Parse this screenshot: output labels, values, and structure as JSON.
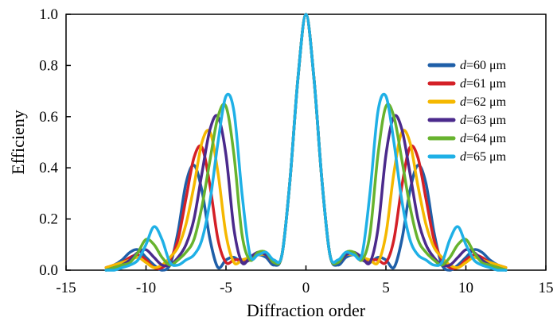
{
  "chart_data": {
    "type": "line",
    "title": "",
    "xlabel": "Diffraction order",
    "ylabel": "Efficieny",
    "xlim": [
      -15,
      15
    ],
    "ylim": [
      0,
      1.0
    ],
    "xticks": [
      -15,
      -10,
      -5,
      0,
      5,
      10,
      15
    ],
    "xtick_labels": [
      "-15",
      "-10",
      "-5",
      "0",
      "5",
      "10",
      "15"
    ],
    "yticks": [
      0,
      0.2,
      0.4,
      0.6,
      0.8,
      1.0
    ],
    "ytick_labels": [
      "0.0",
      "0.2",
      "0.4",
      "0.6",
      "0.8",
      "1.0"
    ],
    "grid": false,
    "legend_position": "top-right",
    "legend_var": "d",
    "x": [
      -12.5,
      -12.0,
      -11.5,
      -11.0,
      -10.5,
      -10.0,
      -9.5,
      -9.0,
      -8.5,
      -8.0,
      -7.5,
      -7.0,
      -6.5,
      -6.0,
      -5.5,
      -5.0,
      -4.5,
      -4.0,
      -3.5,
      -3.0,
      -2.5,
      -2.0,
      -1.5,
      -1.0,
      -0.5,
      0.0,
      0.5,
      1.0,
      1.5,
      2.0,
      2.5,
      3.0,
      3.5,
      4.0,
      4.5,
      5.0,
      5.5,
      6.0,
      6.5,
      7.0,
      7.5,
      8.0,
      8.5,
      9.0,
      9.5,
      10.0,
      10.5,
      11.0,
      11.5,
      12.0,
      12.5
    ],
    "series": [
      {
        "name": "=60 μm",
        "color": "#1f5fa8",
        "values": [
          0.01,
          0.02,
          0.04,
          0.07,
          0.08,
          0.05,
          0.02,
          0.0,
          0.02,
          0.15,
          0.34,
          0.41,
          0.31,
          0.12,
          0.01,
          0.04,
          0.05,
          0.03,
          0.04,
          0.06,
          0.05,
          0.02,
          0.06,
          0.35,
          0.75,
          1.0,
          0.75,
          0.35,
          0.06,
          0.02,
          0.05,
          0.06,
          0.04,
          0.03,
          0.05,
          0.04,
          0.01,
          0.12,
          0.31,
          0.41,
          0.34,
          0.15,
          0.02,
          0.0,
          0.02,
          0.05,
          0.08,
          0.07,
          0.04,
          0.02,
          0.01
        ]
      },
      {
        "name": "=61 μm",
        "color": "#d42027",
        "values": [
          0.01,
          0.02,
          0.03,
          0.05,
          0.06,
          0.04,
          0.01,
          0.01,
          0.04,
          0.12,
          0.28,
          0.44,
          0.48,
          0.33,
          0.12,
          0.03,
          0.04,
          0.04,
          0.04,
          0.06,
          0.06,
          0.03,
          0.06,
          0.35,
          0.75,
          1.0,
          0.75,
          0.35,
          0.06,
          0.03,
          0.06,
          0.06,
          0.04,
          0.04,
          0.04,
          0.03,
          0.12,
          0.33,
          0.48,
          0.44,
          0.28,
          0.12,
          0.04,
          0.01,
          0.01,
          0.04,
          0.06,
          0.05,
          0.03,
          0.02,
          0.01
        ]
      },
      {
        "name": "=62 μm",
        "color": "#f5b800",
        "values": [
          0.01,
          0.02,
          0.03,
          0.04,
          0.05,
          0.03,
          0.01,
          0.02,
          0.05,
          0.09,
          0.18,
          0.33,
          0.5,
          0.54,
          0.38,
          0.14,
          0.03,
          0.04,
          0.05,
          0.06,
          0.06,
          0.03,
          0.06,
          0.35,
          0.75,
          1.0,
          0.75,
          0.35,
          0.06,
          0.03,
          0.06,
          0.06,
          0.05,
          0.04,
          0.03,
          0.14,
          0.38,
          0.54,
          0.5,
          0.33,
          0.18,
          0.09,
          0.05,
          0.02,
          0.01,
          0.03,
          0.05,
          0.04,
          0.03,
          0.02,
          0.01
        ]
      },
      {
        "name": "=63 μm",
        "color": "#4b2a8c",
        "values": [
          0.0,
          0.01,
          0.02,
          0.04,
          0.07,
          0.08,
          0.05,
          0.02,
          0.02,
          0.05,
          0.1,
          0.2,
          0.38,
          0.55,
          0.6,
          0.45,
          0.16,
          0.03,
          0.05,
          0.07,
          0.06,
          0.03,
          0.06,
          0.35,
          0.75,
          1.0,
          0.75,
          0.35,
          0.06,
          0.03,
          0.06,
          0.07,
          0.05,
          0.03,
          0.16,
          0.45,
          0.6,
          0.55,
          0.38,
          0.2,
          0.1,
          0.05,
          0.02,
          0.02,
          0.05,
          0.08,
          0.07,
          0.04,
          0.02,
          0.01,
          0.0
        ]
      },
      {
        "name": "=64 μm",
        "color": "#67b32e",
        "values": [
          0.0,
          0.01,
          0.02,
          0.03,
          0.07,
          0.12,
          0.1,
          0.05,
          0.02,
          0.04,
          0.07,
          0.12,
          0.25,
          0.43,
          0.6,
          0.64,
          0.45,
          0.14,
          0.04,
          0.07,
          0.07,
          0.03,
          0.06,
          0.35,
          0.75,
          1.0,
          0.75,
          0.35,
          0.06,
          0.03,
          0.07,
          0.07,
          0.04,
          0.14,
          0.45,
          0.64,
          0.6,
          0.43,
          0.25,
          0.12,
          0.07,
          0.04,
          0.02,
          0.05,
          0.1,
          0.12,
          0.07,
          0.03,
          0.02,
          0.01,
          0.0
        ]
      },
      {
        "name": "=65 μm",
        "color": "#1fb0e6",
        "values": [
          0.0,
          0.0,
          0.01,
          0.02,
          0.04,
          0.1,
          0.17,
          0.12,
          0.03,
          0.02,
          0.04,
          0.06,
          0.12,
          0.27,
          0.5,
          0.68,
          0.62,
          0.3,
          0.06,
          0.06,
          0.07,
          0.04,
          0.06,
          0.35,
          0.75,
          1.0,
          0.75,
          0.35,
          0.06,
          0.04,
          0.07,
          0.06,
          0.06,
          0.3,
          0.62,
          0.68,
          0.5,
          0.27,
          0.12,
          0.06,
          0.04,
          0.02,
          0.03,
          0.12,
          0.17,
          0.1,
          0.04,
          0.02,
          0.01,
          0.0,
          0.0
        ]
      }
    ]
  }
}
